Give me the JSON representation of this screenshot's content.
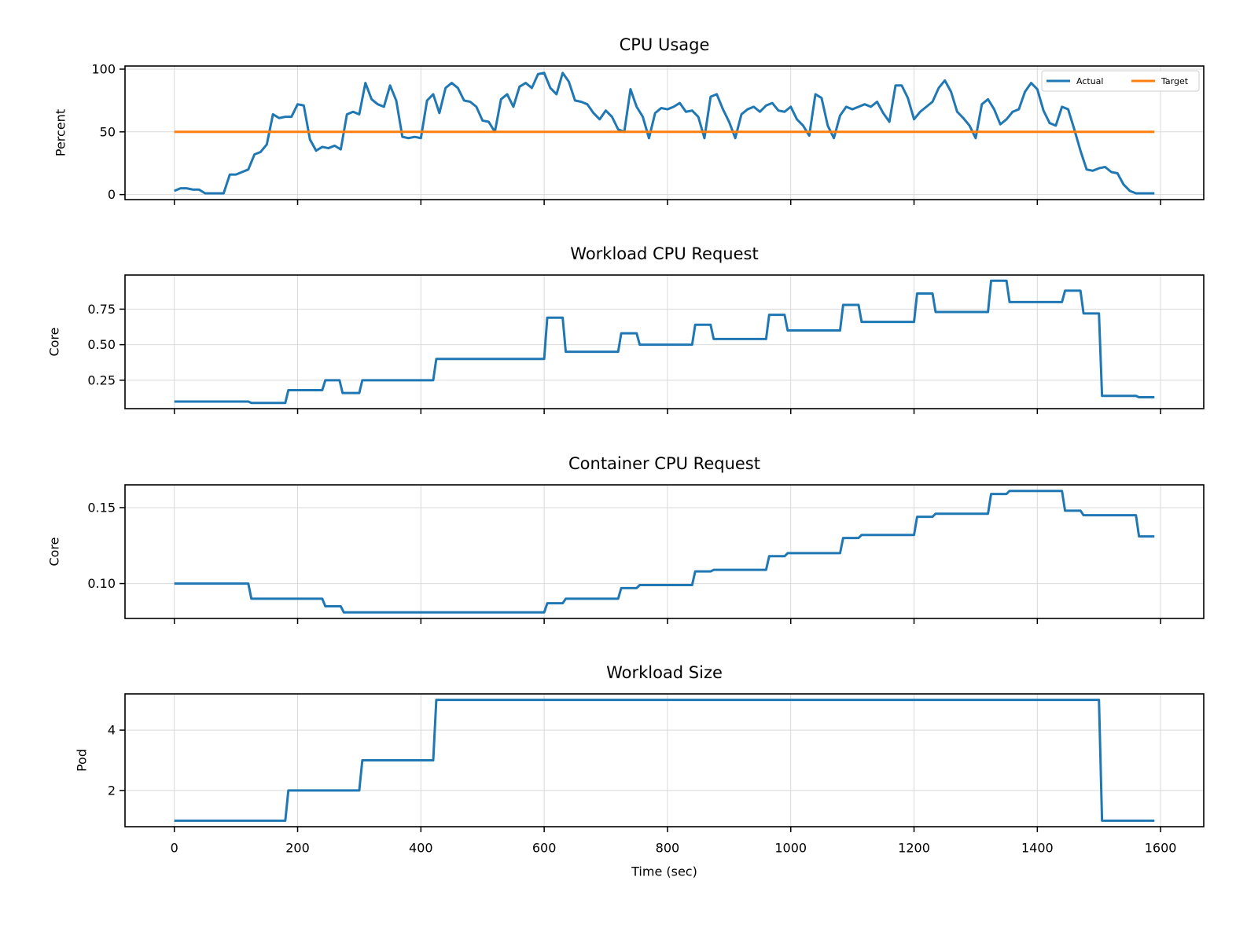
{
  "chart_data": [
    {
      "type": "line",
      "title": "CPU Usage",
      "ylabel": "Percent",
      "ylim": [
        -4,
        102.5
      ],
      "yticks": [
        0,
        50,
        100
      ],
      "grid": true,
      "legend": "upper right",
      "series": [
        {
          "name": "Actual",
          "color": "#1f77b4",
          "x": [
            0,
            10,
            20,
            30,
            40,
            50,
            60,
            70,
            80,
            90,
            100,
            110,
            120,
            130,
            140,
            150,
            160,
            170,
            180,
            190,
            200,
            210,
            220,
            230,
            240,
            250,
            260,
            270,
            280,
            290,
            300,
            310,
            320,
            330,
            340,
            350,
            360,
            370,
            380,
            390,
            400,
            410,
            420,
            430,
            440,
            450,
            460,
            470,
            480,
            490,
            500,
            510,
            520,
            530,
            540,
            550,
            560,
            570,
            580,
            590,
            600,
            610,
            620,
            630,
            640,
            650,
            660,
            670,
            680,
            690,
            700,
            710,
            720,
            730,
            740,
            750,
            760,
            770,
            780,
            790,
            800,
            810,
            820,
            830,
            840,
            850,
            860,
            870,
            880,
            890,
            900,
            910,
            920,
            930,
            940,
            950,
            960,
            970,
            980,
            990,
            1000,
            1010,
            1020,
            1030,
            1040,
            1050,
            1060,
            1070,
            1080,
            1090,
            1100,
            1110,
            1120,
            1130,
            1140,
            1150,
            1160,
            1170,
            1180,
            1190,
            1200,
            1210,
            1220,
            1230,
            1240,
            1250,
            1260,
            1270,
            1280,
            1290,
            1300,
            1310,
            1320,
            1330,
            1340,
            1350,
            1360,
            1370,
            1380,
            1390,
            1400,
            1410,
            1420,
            1430,
            1440,
            1450,
            1460,
            1470,
            1480,
            1490,
            1500,
            1510,
            1520,
            1530,
            1540,
            1550,
            1560,
            1570,
            1580,
            1590
          ],
          "values": [
            3,
            5,
            5,
            4,
            4,
            1,
            1,
            1,
            1,
            16,
            16,
            18,
            20,
            32,
            34,
            40,
            64,
            61,
            62,
            62,
            72,
            71,
            44,
            35,
            38,
            37,
            39,
            36,
            64,
            66,
            64,
            89,
            76,
            72,
            70,
            87,
            75,
            46,
            45,
            46,
            45,
            75,
            80,
            65,
            85,
            89,
            85,
            75,
            74,
            70,
            59,
            58,
            50,
            76,
            80,
            70,
            86,
            89,
            85,
            96,
            97,
            85,
            80,
            97,
            90,
            75,
            74,
            72,
            65,
            60,
            67,
            62,
            52,
            50,
            84,
            70,
            62,
            45,
            65,
            69,
            68,
            70,
            73,
            66,
            67,
            62,
            45,
            78,
            80,
            68,
            58,
            45,
            64,
            68,
            70,
            66,
            71,
            73,
            67,
            66,
            70,
            60,
            55,
            47,
            80,
            77,
            55,
            45,
            63,
            70,
            68,
            70,
            72,
            70,
            74,
            65,
            58,
            87,
            87,
            77,
            60,
            66,
            70,
            74,
            85,
            91,
            82,
            66,
            61,
            55,
            45,
            72,
            76,
            68,
            56,
            60,
            66,
            68,
            82,
            89,
            84,
            67,
            57,
            55,
            70,
            68,
            52,
            35,
            20,
            19,
            21,
            22,
            18,
            17,
            8,
            3,
            1,
            1,
            1,
            1
          ]
        },
        {
          "name": "Target",
          "color": "#ff7f0e",
          "x": [
            0,
            1590
          ],
          "values": [
            50,
            50
          ]
        }
      ]
    },
    {
      "type": "line",
      "title": "Workload CPU Request",
      "ylabel": "Core",
      "ylim": [
        0.05,
        0.99
      ],
      "yticks": [
        0.25,
        {
          "value": 0.5,
          "label": "0.50"
        },
        0.75
      ],
      "grid": true,
      "color": "#1f77b4",
      "x": [
        0,
        120,
        125,
        180,
        185,
        240,
        245,
        268,
        273,
        300,
        305,
        420,
        425,
        600,
        605,
        630,
        635,
        720,
        725,
        750,
        755,
        840,
        845,
        870,
        875,
        960,
        965,
        990,
        995,
        1080,
        1085,
        1110,
        1115,
        1200,
        1205,
        1230,
        1235,
        1320,
        1325,
        1350,
        1355,
        1440,
        1445,
        1470,
        1475,
        1500,
        1505,
        1560,
        1565,
        1590
      ],
      "values": [
        0.1,
        0.1,
        0.09,
        0.09,
        0.18,
        0.18,
        0.25,
        0.25,
        0.16,
        0.16,
        0.25,
        0.25,
        0.4,
        0.4,
        0.69,
        0.69,
        0.45,
        0.45,
        0.58,
        0.58,
        0.5,
        0.5,
        0.64,
        0.64,
        0.54,
        0.54,
        0.71,
        0.71,
        0.6,
        0.6,
        0.78,
        0.78,
        0.66,
        0.66,
        0.86,
        0.86,
        0.73,
        0.73,
        0.95,
        0.95,
        0.8,
        0.8,
        0.88,
        0.88,
        0.72,
        0.72,
        0.14,
        0.14,
        0.13,
        0.13
      ]
    },
    {
      "type": "line",
      "title": "Container CPU Request",
      "ylabel": "Core",
      "ylim": [
        0.077,
        0.165
      ],
      "yticks": [
        {
          "value": 0.1,
          "label": "0.10"
        },
        0.15
      ],
      "grid": true,
      "color": "#1f77b4",
      "x": [
        0,
        120,
        125,
        240,
        245,
        270,
        275,
        600,
        605,
        630,
        635,
        720,
        725,
        750,
        755,
        840,
        845,
        870,
        875,
        960,
        965,
        990,
        995,
        1080,
        1085,
        1110,
        1115,
        1200,
        1205,
        1230,
        1235,
        1320,
        1325,
        1350,
        1355,
        1440,
        1445,
        1470,
        1475,
        1560,
        1565,
        1590
      ],
      "values": [
        0.1,
        0.1,
        0.09,
        0.09,
        0.085,
        0.085,
        0.081,
        0.081,
        0.087,
        0.087,
        0.09,
        0.09,
        0.097,
        0.097,
        0.099,
        0.099,
        0.108,
        0.108,
        0.109,
        0.109,
        0.118,
        0.118,
        0.12,
        0.12,
        0.13,
        0.13,
        0.132,
        0.132,
        0.144,
        0.144,
        0.146,
        0.146,
        0.159,
        0.159,
        0.161,
        0.161,
        0.148,
        0.148,
        0.145,
        0.145,
        0.131,
        0.131
      ]
    },
    {
      "type": "line",
      "title": "Workload Size",
      "ylabel": "Pod",
      "xlabel": "Time (sec)",
      "xlim": [
        -80,
        1670
      ],
      "xticks": [
        0,
        200,
        400,
        600,
        800,
        1000,
        1200,
        1400,
        1600
      ],
      "ylim": [
        0.8,
        5.2
      ],
      "yticks": [
        2,
        4
      ],
      "grid": true,
      "color": "#1f77b4",
      "x": [
        0,
        180,
        185,
        300,
        305,
        420,
        425,
        1500,
        1505,
        1590
      ],
      "values": [
        1,
        1,
        2,
        2,
        3,
        3,
        5,
        5,
        1,
        1
      ]
    }
  ]
}
